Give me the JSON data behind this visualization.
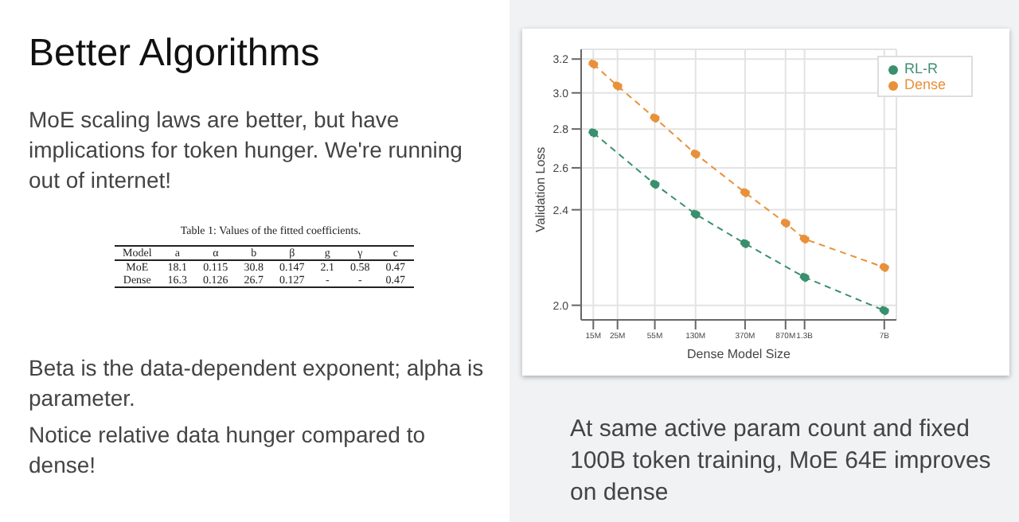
{
  "chart_data": {
    "type": "line",
    "title": "Better Algorithms",
    "xlabel": "Dense Model Size",
    "ylabel": "Validation Loss",
    "log": "xy",
    "grid": true,
    "legend": "top right",
    "marker": "circle",
    "line_style": "dashed",
    "xlim": [
      11600000,
      9040000000
    ],
    "xticks": [
      {
        "value": 15000000,
        "label": "15M"
      },
      {
        "value": 25000000,
        "label": "25M"
      },
      {
        "value": 55000000,
        "label": "55M"
      },
      {
        "value": 130000000,
        "label": "130M"
      },
      {
        "value": 370000000,
        "label": "370M"
      },
      {
        "value": 870000000,
        "label": "870M"
      },
      {
        "value": 1300000000,
        "label": "1.3B"
      },
      {
        "value": 7000000000,
        "label": "7B"
      }
    ],
    "ylim": [
      1.945,
      3.26
    ],
    "yticks": [
      {
        "value": 2,
        "label": "2.0"
      },
      2.4,
      2.6,
      2.8,
      {
        "value": 3,
        "label": "3.0"
      },
      3.2
    ],
    "series": [
      {
        "name": "RL-R",
        "color": "#3a8f6e",
        "x": [
          15000000,
          55000000,
          130000000,
          370000000,
          1300000000,
          7000000000
        ],
        "values": [
          2.78,
          2.52,
          2.38,
          2.25,
          2.11,
          1.98
        ]
      },
      {
        "name": "Dense",
        "color": "#e8913a",
        "x": [
          15000000,
          25000000,
          55000000,
          130000000,
          370000000,
          870000000,
          1300000000,
          7000000000
        ],
        "values": [
          3.17,
          3.04,
          2.86,
          2.67,
          2.48,
          2.34,
          2.27,
          2.15
        ]
      }
    ],
    "annotations": [
      "MoE scaling laws are better, but have implications for token hunger. We're running out of internet!",
      "Table 1: Values of the fitted coefficients.",
      "Model a α b β g γ c",
      "MoE 18.1 0.115 30.8 0.147 2.1 0.58 0.47",
      "Dense 16.3 0.126 26.7 0.127 - - 0.47",
      "Beta is the data-dependent exponent; alpha is parameter.",
      "Notice relative data hunger compared to dense!",
      "At same active param count and fixed 100B token training, MoE 64E improves on dense"
    ]
  }
}
